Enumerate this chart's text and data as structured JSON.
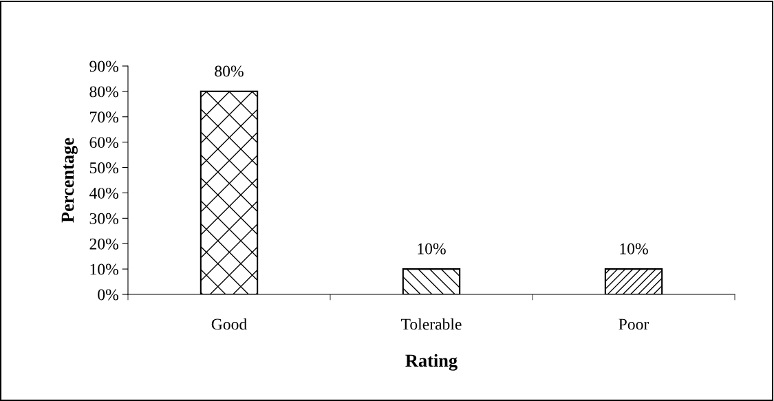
{
  "chart_data": {
    "type": "bar",
    "xlabel": "Rating",
    "ylabel": "Percentage",
    "categories": [
      "Good",
      "Tolerable",
      "Poor"
    ],
    "values": [
      80,
      10,
      10
    ],
    "colors": [
      "#000000",
      "#000000",
      "#000000"
    ],
    "value_labels": [
      "80%",
      "10%",
      "10%"
    ],
    "ylim": [
      0,
      90
    ],
    "yticks": [
      {
        "value": 0,
        "label": "0%"
      },
      {
        "value": 10,
        "label": "10%"
      },
      {
        "value": 20,
        "label": "20%"
      },
      {
        "value": 30,
        "label": "30%"
      },
      {
        "value": 40,
        "label": "40%"
      },
      {
        "value": 50,
        "label": "50%"
      },
      {
        "value": 60,
        "label": "60%"
      },
      {
        "value": 70,
        "label": "70%"
      },
      {
        "value": 80,
        "label": "80%"
      },
      {
        "value": 90,
        "label": "90%"
      }
    ],
    "grid": false
  }
}
